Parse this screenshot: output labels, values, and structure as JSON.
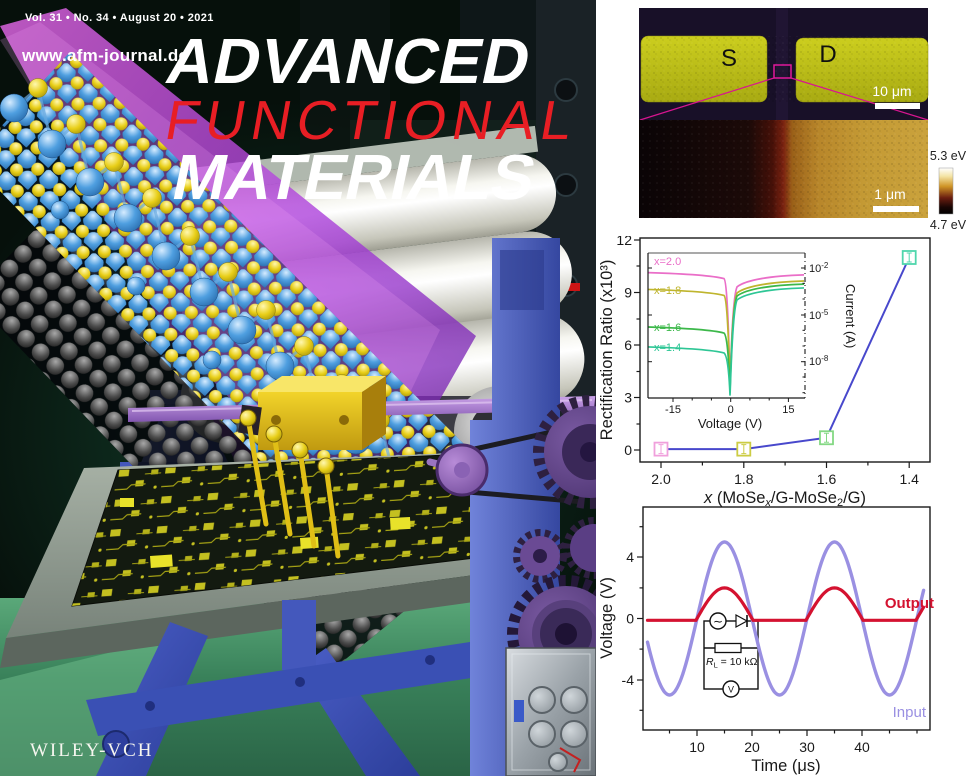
{
  "cover": {
    "issue_line": "Vol. 31 • No. 34 • August 20 • 2021",
    "website": "www.afm-journal.de",
    "title_line1": "ADVANCED",
    "title_line2": "FUNCTIONAL",
    "title_line3": "MATERIALS",
    "publisher": "WILEY-VCH",
    "accent_red": "#e81e24",
    "press_blue": "#4a5ec6",
    "beam_purple": "#a438d8",
    "floor_green": "#3f8a5c"
  },
  "microscopy": {
    "source_label": "S",
    "drain_label": "D",
    "scalebar_optical": "10 μm",
    "scalebar_kpfm": "1 μm",
    "colorbar_max": "5.3 eV",
    "colorbar_min": "4.7 eV",
    "electrode_color": "#c2c41c"
  },
  "chart_data": [
    {
      "type": "scatter",
      "ylabel": "Rectification Ratio (x10³)",
      "xlabel_parts": {
        "x_italic": "x",
        "pre": " (MoSe",
        "sub1": "x",
        "mid": "/G-MoSe",
        "sub2": "2",
        "end": "/G)"
      },
      "x_categories": [
        "2.0",
        "1.8",
        "1.6",
        "1.4"
      ],
      "values": [
        0.05,
        0.05,
        0.7,
        11.0
      ],
      "yticks": [
        "12",
        "9",
        "6",
        "3",
        "0"
      ],
      "ylim": [
        -0.6,
        12.3
      ],
      "x_axis_reversed": true,
      "point_colors": [
        "#f0a0dc",
        "#cccc44",
        "#84d884",
        "#4fd6ac"
      ],
      "line_color": "#4848cc"
    },
    {
      "type": "line",
      "xlabel": "Voltage (V)",
      "ylabel": "Current (A)",
      "xticks": [
        "-15",
        "0",
        "15"
      ],
      "ytick_parts": [
        [
          "10",
          "-2"
        ],
        [
          "10",
          "-5"
        ],
        [
          "10",
          "-8"
        ]
      ],
      "xlim": [
        -21,
        19
      ],
      "yscale": "log",
      "series": [
        {
          "label": "x=2.0",
          "color": "#ea6ec8",
          "reverse_exp": -2.3,
          "forward_exp": -2.45,
          "dip_exp": -9.4
        },
        {
          "label": "x=1.8",
          "color": "#bfb52e",
          "reverse_exp": -3.4,
          "forward_exp": -2.85,
          "dip_exp": -9.6
        },
        {
          "label": "x=1.6",
          "color": "#3cb84a",
          "reverse_exp": -5.85,
          "forward_exp": -3.05,
          "dip_exp": -9.9
        },
        {
          "label": "x=1.4",
          "color": "#2ec695",
          "reverse_exp": -7.15,
          "forward_exp": -3.3,
          "dip_exp": -10.6
        }
      ]
    },
    {
      "type": "line",
      "xlabel": "Time (μs)",
      "ylabel": "Voltage (V)",
      "xticks": [
        "10",
        "20",
        "30",
        "40"
      ],
      "yticks": [
        "4",
        "0",
        "-4"
      ],
      "xlim": [
        1,
        51.5
      ],
      "ylim": [
        -7.3,
        7.3
      ],
      "series": [
        {
          "name": "Input",
          "color": "#9a90e2",
          "amplitude_V": 5,
          "period_us": 20,
          "shape": "sine"
        },
        {
          "name": "Output",
          "color": "#d41230",
          "amplitude_V": 2,
          "period_us": 20,
          "shape": "half-rectified sine"
        }
      ],
      "circuit": {
        "r_sym": "R",
        "r_sub": "L",
        "r_val": " = 10 kΩ",
        "ac": "∼",
        "voltmeter": "V"
      }
    }
  ]
}
